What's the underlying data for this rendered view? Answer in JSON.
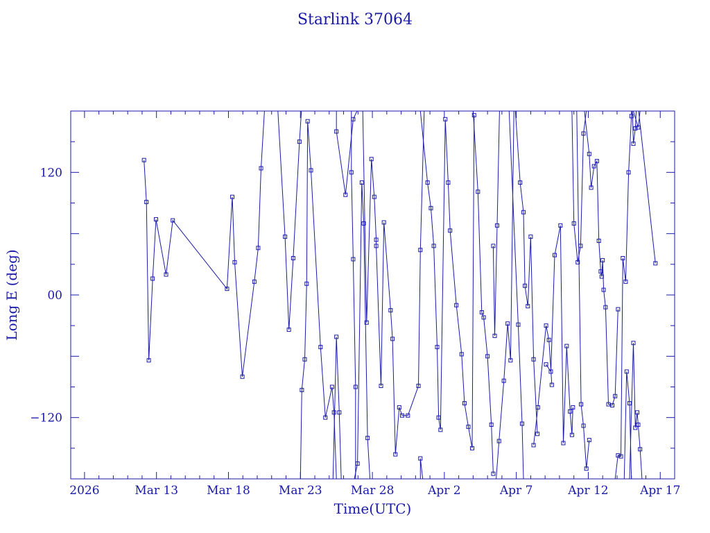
{
  "page": {
    "title": "Starlink 37064"
  },
  "chart_data": {
    "type": "line",
    "title": "Starlink 37064",
    "xlabel": "Time(UTC)",
    "ylabel": "Long E (deg)",
    "x_tick_labels": [
      {
        "date": "2026-03-08",
        "label": "2026"
      },
      {
        "date": "2026-03-13",
        "label": "Mar 13"
      },
      {
        "date": "2026-03-18",
        "label": "Mar 18"
      },
      {
        "date": "2026-03-23",
        "label": "Mar 23"
      },
      {
        "date": "2026-03-28",
        "label": "Mar 28"
      },
      {
        "date": "2026-04-02",
        "label": "Apr  2"
      },
      {
        "date": "2026-04-07",
        "label": "Apr  7"
      },
      {
        "date": "2026-04-12",
        "label": "Apr 12"
      },
      {
        "date": "2026-04-17",
        "label": "Apr 17"
      }
    ],
    "y_tick_labels": [
      {
        "value": 120,
        "label": "120"
      },
      {
        "value": 0,
        "label": "00"
      },
      {
        "value": -120,
        "label": "−120"
      }
    ],
    "xlim": [
      "2026-03-07T01:00",
      "2026-04-18T00:00"
    ],
    "ylim": [
      -180,
      180
    ],
    "color": "#1a1aa8",
    "series": [
      {
        "points": [
          [
            "2026-03-12T03:12",
            132
          ],
          [
            "2026-03-12T07:12",
            91
          ],
          [
            "2026-03-12T11:12",
            -64
          ],
          [
            "2026-03-12T17:36",
            16
          ],
          [
            "2026-03-12T23:12",
            74
          ],
          [
            "2026-03-13T16:00",
            20
          ],
          [
            "2026-03-14T03:12",
            73
          ],
          [
            "2026-03-17T21:36",
            6
          ],
          [
            "2026-03-18T06:24",
            96
          ],
          [
            "2026-03-18T10:24",
            32
          ],
          [
            "2026-03-18T23:12",
            -80
          ],
          [
            "2026-03-19T19:12",
            13
          ],
          [
            "2026-03-20T01:36",
            46
          ],
          [
            "2026-03-20T06:24",
            124
          ],
          [
            "2026-03-20T12:00",
            180
          ]
        ]
      },
      {
        "points": [
          [
            "2026-03-21T10:24",
            180
          ],
          [
            "2026-03-21T22:24",
            57
          ],
          [
            "2026-03-22T04:48",
            -34
          ],
          [
            "2026-03-22T12:00",
            36
          ],
          [
            "2026-03-22T22:24",
            150
          ],
          [
            "2026-03-23T01:36",
            180
          ]
        ]
      },
      {
        "points": [
          [
            "2026-03-23T00:00",
            -180
          ],
          [
            "2026-03-23T02:24",
            -93
          ],
          [
            "2026-03-23T07:12",
            -63
          ],
          [
            "2026-03-23T10:24",
            11
          ],
          [
            "2026-03-23T12:00",
            170
          ],
          [
            "2026-03-23T17:36",
            122
          ],
          [
            "2026-03-24T09:36",
            -51
          ],
          [
            "2026-03-24T17:36",
            -120
          ],
          [
            "2026-03-25T04:48",
            -90
          ],
          [
            "2026-03-25T08:00",
            -115
          ],
          [
            "2026-03-25T12:00",
            -180
          ]
        ]
      },
      {
        "points": [
          [
            "2026-03-25T06:24",
            -180
          ],
          [
            "2026-03-25T12:00",
            -41
          ],
          [
            "2026-03-25T16:48",
            -115
          ],
          [
            "2026-03-25T20:00",
            -180
          ]
        ]
      },
      {
        "points": [
          [
            "2026-03-25T12:00",
            180
          ],
          [
            "2026-03-25T12:00",
            160
          ],
          [
            "2026-03-26T03:12",
            98
          ],
          [
            "2026-03-26T16:00",
            172
          ],
          [
            "2026-03-26T22:24",
            180
          ]
        ]
      },
      {
        "points": [
          [
            "2026-03-26T13:00",
            180
          ],
          [
            "2026-03-26T13:00",
            120
          ],
          [
            "2026-03-26T16:00",
            35
          ],
          [
            "2026-03-26T20:00",
            -90
          ],
          [
            "2026-03-26T20:00",
            -180
          ]
        ]
      },
      {
        "points": [
          [
            "2026-03-26T18:00",
            -180
          ],
          [
            "2026-03-26T23:12",
            -165
          ],
          [
            "2026-03-27T06:24",
            110
          ],
          [
            "2026-03-27T09:36",
            70
          ],
          [
            "2026-03-27T16:00",
            -140
          ],
          [
            "2026-03-27T20:00",
            -180
          ]
        ]
      },
      {
        "points": [
          [
            "2026-03-27T08:00",
            180
          ],
          [
            "2026-03-27T14:24",
            -27
          ],
          [
            "2026-03-27T22:24",
            133
          ],
          [
            "2026-03-28T03:12",
            96
          ],
          [
            "2026-03-28T06:24",
            54
          ],
          [
            "2026-03-28T06:24",
            48
          ],
          [
            "2026-03-28T14:24",
            -89
          ],
          [
            "2026-03-28T19:12",
            71
          ],
          [
            "2026-03-29T06:24",
            -15
          ],
          [
            "2026-03-29T09:36",
            -43
          ],
          [
            "2026-03-29T14:24",
            -156
          ],
          [
            "2026-03-29T20:48",
            -110
          ],
          [
            "2026-03-30T01:36",
            -118
          ],
          [
            "2026-03-30T11:12",
            -118
          ],
          [
            "2026-03-31T04:48",
            -89
          ],
          [
            "2026-03-31T08:00",
            44
          ],
          [
            "2026-03-31T14:24",
            180
          ]
        ]
      },
      {
        "points": [
          [
            "2026-03-31T08:00",
            -180
          ],
          [
            "2026-03-31T08:00",
            -160
          ],
          [
            "2026-03-31T12:00",
            -180
          ]
        ]
      },
      {
        "points": [
          [
            "2026-03-31T08:00",
            180
          ],
          [
            "2026-03-31T20:00",
            110
          ],
          [
            "2026-04-01T01:36",
            85
          ],
          [
            "2026-04-01T06:24",
            48
          ],
          [
            "2026-04-01T12:00",
            -51
          ],
          [
            "2026-04-01T14:24",
            -120
          ],
          [
            "2026-04-01T17:36",
            -132
          ],
          [
            "2026-04-02T01:36",
            172
          ],
          [
            "2026-04-02T06:24",
            110
          ],
          [
            "2026-04-02T09:36",
            63
          ],
          [
            "2026-04-02T20:00",
            -10
          ],
          [
            "2026-04-03T04:48",
            -58
          ],
          [
            "2026-04-03T09:36",
            -106
          ],
          [
            "2026-04-03T16:00",
            -129
          ],
          [
            "2026-04-03T22:24",
            -150
          ],
          [
            "2026-04-04T01:36",
            176
          ]
        ]
      },
      {
        "points": [
          [
            "2026-04-04T00:00",
            180
          ],
          [
            "2026-04-04T08:00",
            101
          ],
          [
            "2026-04-04T14:24",
            -17
          ],
          [
            "2026-04-04T17:36",
            -22
          ],
          [
            "2026-04-05T00:00",
            -60
          ],
          [
            "2026-04-05T06:24",
            -127
          ],
          [
            "2026-04-05T09:36",
            -175
          ]
        ]
      },
      {
        "points": [
          [
            "2026-04-05T09:36",
            48
          ],
          [
            "2026-04-05T12:00",
            -40
          ],
          [
            "2026-04-05T16:00",
            68
          ],
          [
            "2026-04-05T20:00",
            180
          ]
        ]
      },
      {
        "points": [
          [
            "2026-04-05T14:24",
            -180
          ],
          [
            "2026-04-05T19:12",
            -143
          ],
          [
            "2026-04-06T03:12",
            -84
          ],
          [
            "2026-04-06T09:36",
            -28
          ],
          [
            "2026-04-06T14:24",
            -64
          ],
          [
            "2026-04-06T20:00",
            180
          ]
        ]
      },
      {
        "points": [
          [
            "2026-04-06T12:00",
            180
          ],
          [
            "2026-04-07T03:12",
            -29
          ],
          [
            "2026-04-07T09:36",
            -126
          ],
          [
            "2026-04-07T12:00",
            -180
          ]
        ]
      },
      {
        "points": [
          [
            "2026-04-06T22:24",
            180
          ],
          [
            "2026-04-07T06:24",
            110
          ],
          [
            "2026-04-07T12:00",
            81
          ],
          [
            "2026-04-07T14:24",
            9
          ],
          [
            "2026-04-07T19:12",
            -11
          ],
          [
            "2026-04-08T00:00",
            57
          ],
          [
            "2026-04-08T04:48",
            -63
          ],
          [
            "2026-04-08T11:12",
            -136
          ]
        ]
      },
      {
        "points": [
          [
            "2026-04-08T04:48",
            -147
          ],
          [
            "2026-04-08T12:00",
            -110
          ],
          [
            "2026-04-09T01:36",
            -30
          ],
          [
            "2026-04-09T06:24",
            -44
          ],
          [
            "2026-04-09T11:12",
            -88
          ]
        ]
      },
      {
        "points": [
          [
            "2026-04-09T01:36",
            -68
          ],
          [
            "2026-04-09T09:36",
            -75
          ],
          [
            "2026-04-09T16:00",
            39
          ],
          [
            "2026-04-10T01:36",
            68
          ],
          [
            "2026-04-10T06:24",
            -145
          ],
          [
            "2026-04-10T12:00",
            -50
          ],
          [
            "2026-04-10T17:36",
            -114
          ],
          [
            "2026-04-10T20:48",
            -137
          ],
          [
            "2026-04-10T22:24",
            -110
          ]
        ]
      },
      {
        "points": [
          [
            "2026-04-10T20:48",
            180
          ],
          [
            "2026-04-11T00:00",
            70
          ],
          [
            "2026-04-11T06:24",
            32
          ],
          [
            "2026-04-11T11:12",
            48
          ],
          [
            "2026-04-11T16:00",
            158
          ],
          [
            "2026-04-11T20:48",
            180
          ]
        ]
      },
      {
        "points": [
          [
            "2026-04-11T04:48",
            180
          ],
          [
            "2026-04-11T12:00",
            -107
          ],
          [
            "2026-04-11T16:00",
            -128
          ],
          [
            "2026-04-11T20:48",
            -170
          ],
          [
            "2026-04-12T01:36",
            -142
          ]
        ]
      },
      {
        "points": [
          [
            "2026-04-11T17:36",
            180
          ],
          [
            "2026-04-12T01:36",
            138
          ],
          [
            "2026-04-12T04:48",
            105
          ],
          [
            "2026-04-12T09:36",
            126
          ],
          [
            "2026-04-12T14:24",
            131
          ],
          [
            "2026-04-12T17:36",
            53
          ],
          [
            "2026-04-12T20:48",
            23
          ],
          [
            "2026-04-12T22:24",
            18
          ],
          [
            "2026-04-13T00:00",
            34
          ],
          [
            "2026-04-13T01:36",
            5
          ],
          [
            "2026-04-13T04:48",
            -12
          ],
          [
            "2026-04-13T09:36",
            -107
          ],
          [
            "2026-04-13T16:00",
            -108
          ],
          [
            "2026-04-13T20:48",
            -99
          ],
          [
            "2026-04-14T01:36",
            -14
          ]
        ]
      },
      {
        "points": [
          [
            "2026-04-13T20:48",
            -180
          ],
          [
            "2026-04-14T01:36",
            -157
          ],
          [
            "2026-04-14T06:24",
            -158
          ],
          [
            "2026-04-14T09:36",
            36
          ],
          [
            "2026-04-14T14:24",
            13
          ],
          [
            "2026-04-14T19:12",
            120
          ],
          [
            "2026-04-15T00:00",
            175
          ],
          [
            "2026-04-15T01:36",
            180
          ]
        ]
      },
      {
        "points": [
          [
            "2026-04-14T12:00",
            -180
          ],
          [
            "2026-04-14T16:00",
            -75
          ],
          [
            "2026-04-14T20:48",
            -106
          ],
          [
            "2026-04-15T00:00",
            -180
          ]
        ]
      },
      {
        "points": [
          [
            "2026-04-15T01:36",
            180
          ],
          [
            "2026-04-15T03:12",
            148
          ],
          [
            "2026-04-15T06:24",
            163
          ],
          [
            "2026-04-15T08:00",
            180
          ]
        ]
      },
      {
        "points": [
          [
            "2026-04-14T20:48",
            -180
          ],
          [
            "2026-04-15T03:12",
            -47
          ],
          [
            "2026-04-15T06:24",
            -130
          ],
          [
            "2026-04-15T09:36",
            -115
          ],
          [
            "2026-04-15T11:12",
            -127
          ],
          [
            "2026-04-15T14:24",
            -151
          ],
          [
            "2026-04-15T17:36",
            -180
          ]
        ]
      },
      {
        "points": [
          [
            "2026-04-15T03:12",
            180
          ],
          [
            "2026-04-15T11:12",
            164
          ],
          [
            "2026-04-15T14:24",
            180
          ]
        ]
      },
      {
        "points": [
          [
            "2026-04-15T12:00",
            180
          ],
          [
            "2026-04-16T16:00",
            31
          ]
        ]
      }
    ]
  }
}
